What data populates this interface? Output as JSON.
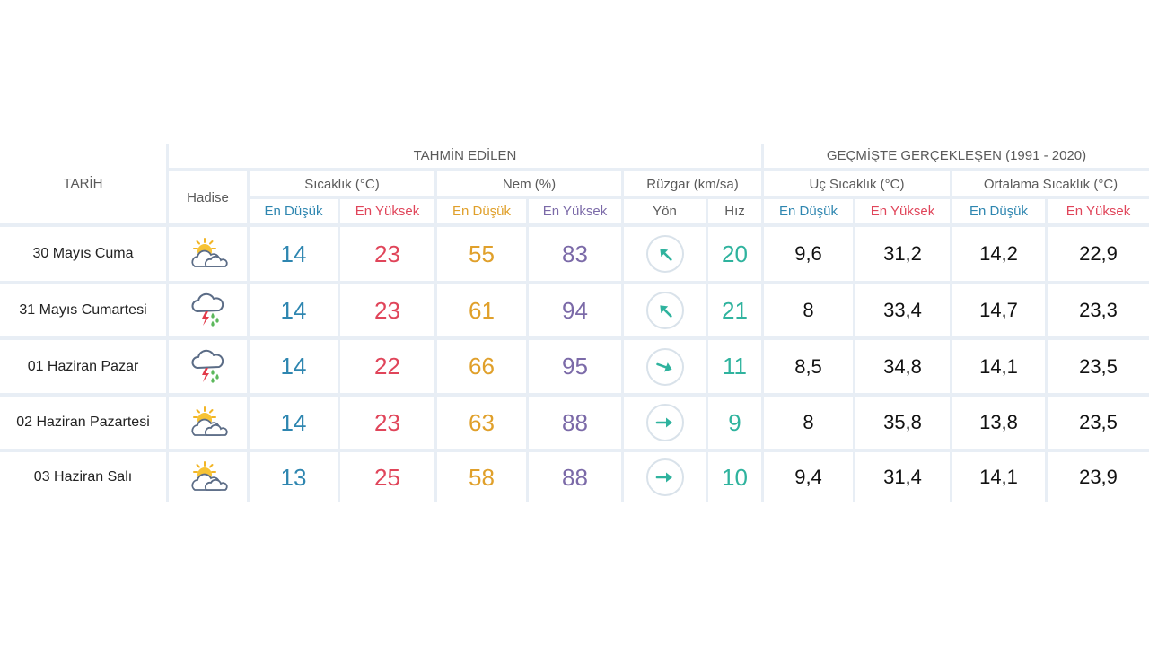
{
  "header": {
    "tarih": "TARİH",
    "tahmin": "TAHMİN EDİLEN",
    "gecmis": "GEÇMİŞTE GERÇEKLEŞEN (1991 - 2020)",
    "hadise": "Hadise",
    "sicaklik": "Sıcaklık (°C)",
    "nem": "Nem (%)",
    "ruzgar": "Rüzgar (km/sa)",
    "uc_sicaklik": "Uç Sıcaklık (°C)",
    "ort_sicaklik": "Ortalama Sıcaklık (°C)",
    "en_dusuk": "En Düşük",
    "en_yuksek": "En Yüksek",
    "yon": "Yön",
    "hiz": "Hız"
  },
  "rows": [
    {
      "date": "30 Mayıs Cuma",
      "icon": "partly-cloudy-sun-icon",
      "t_low": "14",
      "t_high": "23",
      "n_low": "55",
      "n_high": "83",
      "wind_dir": "north-east-wind-arrow-icon",
      "wind_speed": "20",
      "uc_low": "9,6",
      "uc_high": "31,2",
      "ort_low": "14,2",
      "ort_high": "22,9"
    },
    {
      "date": "31 Mayıs Cumartesi",
      "icon": "thunderstorm-rain-icon",
      "t_low": "14",
      "t_high": "23",
      "n_low": "61",
      "n_high": "94",
      "wind_dir": "north-east-wind-arrow-icon",
      "wind_speed": "21",
      "uc_low": "8",
      "uc_high": "33,4",
      "ort_low": "14,7",
      "ort_high": "23,3"
    },
    {
      "date": "01 Haziran Pazar",
      "icon": "thunderstorm-rain-icon",
      "t_low": "14",
      "t_high": "22",
      "n_low": "66",
      "n_high": "95",
      "wind_dir": "north-west-wind-arrow-icon",
      "wind_speed": "11",
      "uc_low": "8,5",
      "uc_high": "34,8",
      "ort_low": "14,1",
      "ort_high": "23,5"
    },
    {
      "date": "02 Haziran Pazartesi",
      "icon": "partly-cloudy-sun-icon",
      "t_low": "14",
      "t_high": "23",
      "n_low": "63",
      "n_high": "88",
      "wind_dir": "west-wind-arrow-icon",
      "wind_speed": "9",
      "uc_low": "8",
      "uc_high": "35,8",
      "ort_low": "13,8",
      "ort_high": "23,5"
    },
    {
      "date": "03 Haziran Salı",
      "icon": "partly-cloudy-sun-icon",
      "t_low": "13",
      "t_high": "25",
      "n_low": "58",
      "n_high": "88",
      "wind_dir": "west-wind-arrow-icon",
      "wind_speed": "10",
      "uc_low": "9,4",
      "uc_high": "31,4",
      "ort_low": "14,1",
      "ort_high": "23,9"
    }
  ],
  "colors": {
    "low": "#2e86b0",
    "high": "#e0455a",
    "nem_low": "#e0a02b",
    "nem_high": "#7b6aa8",
    "wind": "#2fb39e",
    "grid": "#e8eef5"
  }
}
